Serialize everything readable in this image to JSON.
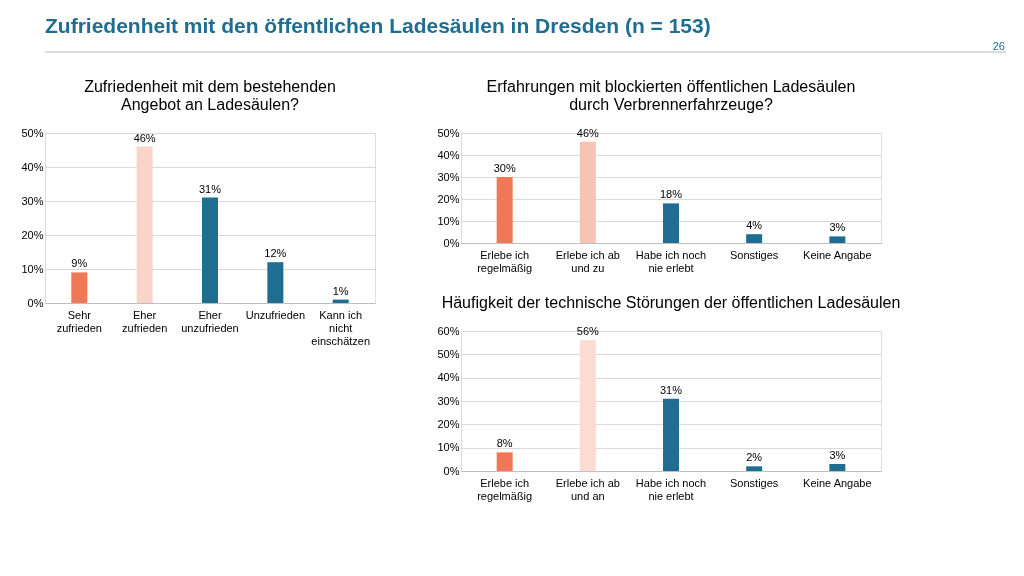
{
  "chart_data": [
    {
      "type": "other",
      "title": "Zufriedenheit mit den öffentlichen Ladesäulen in Dresden (n = 153)",
      "annotations": [
        "26"
      ]
    },
    {
      "type": "bar",
      "title": "Zufriedenheit mit dem bestehenden Angebot an Ladesäulen?",
      "categories": [
        "Sehr zufrieden",
        "Eher zufrieden",
        "Eher unzufrieden",
        "Unzufrieden",
        "Kann ich nicht einschätzen"
      ],
      "values": [
        9,
        46,
        31,
        12,
        1
      ],
      "value_labels": [
        "9%",
        "46%",
        "31%",
        "12%",
        "1%"
      ],
      "colors": [
        "#f07857",
        "#fad3c9",
        "#1f6e91",
        "#1f6e91",
        "#1f6e91"
      ],
      "ylim": [
        0,
        50
      ],
      "yticks": [
        {
          "value": 0,
          "label": "0%"
        },
        {
          "value": 10,
          "label": "10%"
        },
        {
          "value": 20,
          "label": "20%"
        },
        {
          "value": 30,
          "label": "30%"
        },
        {
          "value": 40,
          "label": "40%"
        },
        {
          "value": 50,
          "label": "50%"
        }
      ],
      "grid": "y"
    },
    {
      "type": "bar",
      "title": "Erfahrungen mit blockierten öffentlichen Ladesäulen durch Verbrennerfahrzeuge?",
      "categories": [
        "Erlebe ich regelmäßig",
        "Erlebe ich ab und zu",
        "Habe ich noch nie erlebt",
        "Sonstiges",
        "Keine Angabe"
      ],
      "values": [
        30,
        46,
        18,
        4,
        3
      ],
      "value_labels": [
        "30%",
        "46%",
        "18%",
        "4%",
        "3%"
      ],
      "colors": [
        "#f07857",
        "#f7c3b4",
        "#1f6e91",
        "#1f6e91",
        "#1f6e91"
      ],
      "ylim": [
        0,
        50
      ],
      "yticks": [
        {
          "value": 0,
          "label": "0%"
        },
        {
          "value": 10,
          "label": "10%"
        },
        {
          "value": 20,
          "label": "20%"
        },
        {
          "value": 30,
          "label": "30%"
        },
        {
          "value": 40,
          "label": "40%"
        },
        {
          "value": 50,
          "label": "50%"
        }
      ],
      "grid": "y"
    },
    {
      "type": "bar",
      "title": "Häufigkeit der technische Störungen der öffentlichen Ladesäulen",
      "categories": [
        "Erlebe ich regelmäßig",
        "Erlebe ich ab und an",
        "Habe ich noch nie erlebt",
        "Sonstiges",
        "Keine Angabe"
      ],
      "values": [
        8,
        56,
        31,
        2,
        3
      ],
      "value_labels": [
        "8%",
        "56%",
        "31%",
        "2%",
        "3%"
      ],
      "colors": [
        "#f07857",
        "#fcdcd2",
        "#1f6e91",
        "#1f6e91",
        "#1f6e91"
      ],
      "ylim": [
        0,
        60
      ],
      "yticks": [
        {
          "value": 0,
          "label": "0%"
        },
        {
          "value": 10,
          "label": "10%"
        },
        {
          "value": 20,
          "label": "20%"
        },
        {
          "value": 30,
          "label": "30%"
        },
        {
          "value": 40,
          "label": "40%"
        },
        {
          "value": 50,
          "label": "50%"
        },
        {
          "value": 60,
          "label": "60%"
        }
      ],
      "grid": "y"
    }
  ]
}
